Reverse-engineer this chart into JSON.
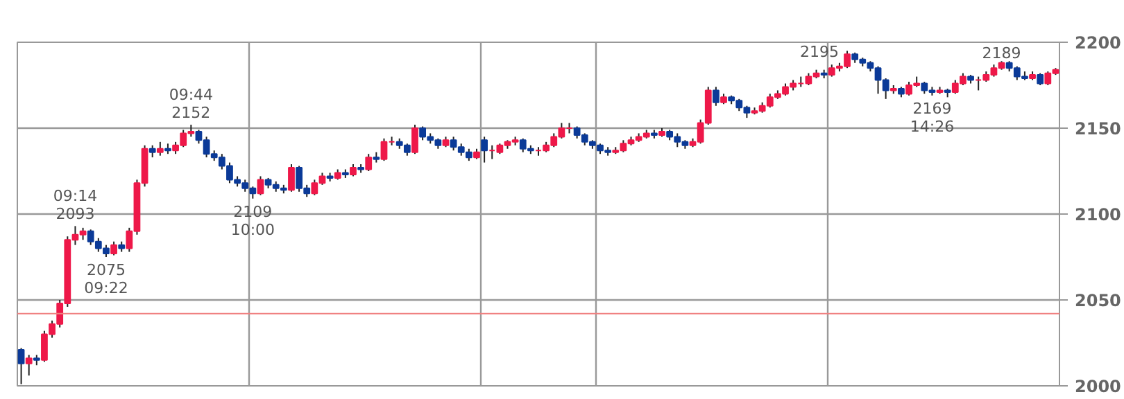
{
  "chart_data": {
    "type": "candlestick",
    "categories": [
      null,
      null,
      null,
      null,
      null,
      null,
      null,
      null,
      null,
      null,
      null,
      null,
      null,
      null,
      null,
      null,
      null,
      null,
      null,
      null,
      null,
      null,
      null,
      null,
      null,
      null,
      null,
      null,
      null,
      null,
      null,
      null,
      null,
      null,
      null,
      null,
      null,
      null,
      null,
      null,
      null,
      null,
      null,
      null,
      null,
      null,
      null,
      null,
      null,
      null,
      null,
      null,
      null,
      null,
      null,
      null,
      null,
      null,
      null,
      null,
      null,
      null,
      null,
      null,
      null,
      null,
      null,
      null,
      null,
      null,
      null,
      null,
      null,
      null,
      null,
      null,
      null,
      null,
      null,
      null,
      null,
      null,
      null,
      null,
      null,
      null,
      null,
      null,
      null,
      null,
      null,
      null,
      null,
      null,
      null,
      null,
      null,
      null,
      null,
      null,
      null,
      null,
      null,
      null,
      null,
      null,
      null,
      null,
      null,
      null,
      null,
      null,
      null,
      null,
      null,
      null,
      null,
      null,
      null,
      null,
      null,
      null,
      null,
      null,
      null,
      null,
      null,
      null,
      null,
      null,
      null,
      null,
      null,
      null,
      null
    ],
    "ohlc": [
      [
        2021,
        2022,
        2001,
        2013
      ],
      [
        2013,
        2018,
        2006,
        2016
      ],
      [
        2016,
        2018,
        2012,
        2015
      ],
      [
        2015,
        2032,
        2014,
        2030
      ],
      [
        2030,
        2038,
        2028,
        2036
      ],
      [
        2036,
        2050,
        2034,
        2048
      ],
      [
        2048,
        2087,
        2046,
        2085
      ],
      [
        2085,
        2093,
        2082,
        2088
      ],
      [
        2088,
        2092,
        2085,
        2090
      ],
      [
        2090,
        2091,
        2082,
        2084
      ],
      [
        2084,
        2086,
        2078,
        2080
      ],
      [
        2080,
        2082,
        2075,
        2077
      ],
      [
        2077,
        2084,
        2076,
        2082
      ],
      [
        2082,
        2084,
        2078,
        2080
      ],
      [
        2080,
        2092,
        2078,
        2090
      ],
      [
        2090,
        2120,
        2088,
        2118
      ],
      [
        2118,
        2140,
        2116,
        2138
      ],
      [
        2138,
        2140,
        2133,
        2136
      ],
      [
        2136,
        2142,
        2134,
        2138
      ],
      [
        2138,
        2141,
        2135,
        2137
      ],
      [
        2137,
        2142,
        2135,
        2140
      ],
      [
        2140,
        2149,
        2139,
        2147
      ],
      [
        2147,
        2152,
        2145,
        2148
      ],
      [
        2148,
        2149,
        2141,
        2143
      ],
      [
        2143,
        2145,
        2133,
        2135
      ],
      [
        2135,
        2137,
        2131,
        2133
      ],
      [
        2133,
        2135,
        2126,
        2128
      ],
      [
        2128,
        2130,
        2118,
        2120
      ],
      [
        2120,
        2122,
        2116,
        2118
      ],
      [
        2118,
        2120,
        2113,
        2115
      ],
      [
        2115,
        2116,
        2109,
        2112
      ],
      [
        2112,
        2122,
        2111,
        2120
      ],
      [
        2120,
        2121,
        2115,
        2117
      ],
      [
        2117,
        2119,
        2113,
        2115
      ],
      [
        2115,
        2117,
        2112,
        2114
      ],
      [
        2114,
        2129,
        2113,
        2127
      ],
      [
        2127,
        2128,
        2113,
        2115
      ],
      [
        2115,
        2117,
        2110,
        2112
      ],
      [
        2112,
        2120,
        2111,
        2118
      ],
      [
        2118,
        2124,
        2117,
        2122
      ],
      [
        2122,
        2124,
        2119,
        2121
      ],
      [
        2121,
        2126,
        2120,
        2124
      ],
      [
        2124,
        2126,
        2121,
        2123
      ],
      [
        2123,
        2129,
        2122,
        2127
      ],
      [
        2127,
        2129,
        2124,
        2126
      ],
      [
        2126,
        2135,
        2125,
        2133
      ],
      [
        2133,
        2136,
        2130,
        2132
      ],
      [
        2132,
        2144,
        2131,
        2142
      ],
      [
        2142,
        2145,
        2140,
        2142
      ],
      [
        2142,
        2144,
        2138,
        2140
      ],
      [
        2140,
        2141,
        2134,
        2136
      ],
      [
        2136,
        2152,
        2135,
        2150
      ],
      [
        2150,
        2151,
        2143,
        2145
      ],
      [
        2145,
        2147,
        2141,
        2143
      ],
      [
        2143,
        2144,
        2138,
        2140
      ],
      [
        2140,
        2145,
        2139,
        2143
      ],
      [
        2143,
        2145,
        2137,
        2139
      ],
      [
        2139,
        2141,
        2134,
        2136
      ],
      [
        2136,
        2138,
        2131,
        2133
      ],
      [
        2133,
        2138,
        2132,
        2136
      ],
      [
        2143,
        2145,
        2130,
        2137
      ],
      [
        2137,
        2140,
        2132,
        2137
      ],
      [
        2136,
        2141,
        2135,
        2140
      ],
      [
        2140,
        2143,
        2138,
        2142
      ],
      [
        2142,
        2145,
        2140,
        2143
      ],
      [
        2143,
        2144,
        2136,
        2138
      ],
      [
        2138,
        2140,
        2135,
        2137
      ],
      [
        2137,
        2139,
        2134,
        2137
      ],
      [
        2137,
        2142,
        2136,
        2140
      ],
      [
        2140,
        2147,
        2139,
        2145
      ],
      [
        2145,
        2153,
        2144,
        2150
      ],
      [
        2150,
        2153,
        2147,
        2150
      ],
      [
        2150,
        2151,
        2144,
        2146
      ],
      [
        2146,
        2147,
        2140,
        2142
      ],
      [
        2142,
        2143,
        2138,
        2140
      ],
      [
        2140,
        2141,
        2135,
        2137
      ],
      [
        2137,
        2139,
        2134,
        2136
      ],
      [
        2136,
        2139,
        2135,
        2137
      ],
      [
        2137,
        2143,
        2136,
        2141
      ],
      [
        2141,
        2145,
        2140,
        2143
      ],
      [
        2143,
        2147,
        2142,
        2145
      ],
      [
        2145,
        2149,
        2144,
        2147
      ],
      [
        2147,
        2149,
        2144,
        2146
      ],
      [
        2146,
        2150,
        2145,
        2148
      ],
      [
        2148,
        2149,
        2143,
        2145
      ],
      [
        2145,
        2147,
        2139,
        2142
      ],
      [
        2142,
        2143,
        2138,
        2140
      ],
      [
        2140,
        2144,
        2139,
        2142
      ],
      [
        2142,
        2155,
        2141,
        2153
      ],
      [
        2153,
        2174,
        2152,
        2172
      ],
      [
        2172,
        2174,
        2163,
        2165
      ],
      [
        2165,
        2170,
        2164,
        2168
      ],
      [
        2168,
        2169,
        2164,
        2166
      ],
      [
        2166,
        2167,
        2160,
        2162
      ],
      [
        2162,
        2163,
        2156,
        2159
      ],
      [
        2159,
        2162,
        2158,
        2160
      ],
      [
        2160,
        2165,
        2159,
        2163
      ],
      [
        2163,
        2170,
        2162,
        2168
      ],
      [
        2168,
        2172,
        2167,
        2170
      ],
      [
        2170,
        2176,
        2169,
        2174
      ],
      [
        2174,
        2178,
        2172,
        2176
      ],
      [
        2176,
        2180,
        2174,
        2176
      ],
      [
        2176,
        2182,
        2175,
        2180
      ],
      [
        2180,
        2184,
        2179,
        2182
      ],
      [
        2182,
        2184,
        2179,
        2181
      ],
      [
        2181,
        2187,
        2180,
        2185
      ],
      [
        2185,
        2188,
        2183,
        2186
      ],
      [
        2186,
        2195,
        2185,
        2193
      ],
      [
        2193,
        2194,
        2188,
        2190
      ],
      [
        2190,
        2191,
        2186,
        2188
      ],
      [
        2188,
        2189,
        2183,
        2185
      ],
      [
        2185,
        2186,
        2170,
        2178
      ],
      [
        2178,
        2179,
        2167,
        2172
      ],
      [
        2172,
        2175,
        2170,
        2173
      ],
      [
        2173,
        2174,
        2168,
        2170
      ],
      [
        2170,
        2177,
        2169,
        2175
      ],
      [
        2175,
        2180,
        2174,
        2176
      ],
      [
        2176,
        2177,
        2170,
        2172
      ],
      [
        2172,
        2174,
        2169,
        2171
      ],
      [
        2171,
        2174,
        2170,
        2172
      ],
      [
        2172,
        2173,
        2168,
        2171
      ],
      [
        2171,
        2178,
        2170,
        2176
      ],
      [
        2176,
        2182,
        2175,
        2180
      ],
      [
        2180,
        2181,
        2176,
        2178
      ],
      [
        2178,
        2180,
        2172,
        2178
      ],
      [
        2178,
        2183,
        2177,
        2181
      ],
      [
        2181,
        2187,
        2180,
        2185
      ],
      [
        2185,
        2189,
        2184,
        2188
      ],
      [
        2188,
        2189,
        2183,
        2185
      ],
      [
        2185,
        2186,
        2178,
        2180
      ],
      [
        2180,
        2183,
        2178,
        2179
      ],
      [
        2179,
        2183,
        2178,
        2181
      ],
      [
        2181,
        2182,
        2175,
        2176
      ],
      [
        2176,
        2183,
        2175,
        2182
      ],
      [
        2182,
        2185,
        2181,
        2184
      ]
    ],
    "ylim": [
      2000,
      2200
    ],
    "yticks": [
      2000,
      2050,
      2100,
      2150,
      2200
    ],
    "tick_labels": "y",
    "grid": true,
    "ref_lines": [
      {
        "axis": "y",
        "value": 2042,
        "color": "#f08080"
      }
    ],
    "annotations": [
      "09:14\n2093",
      "2075\n09:22",
      "09:44\n2152",
      "2109\n10:00",
      "2195",
      "2169\n14:26",
      "2189"
    ]
  }
}
